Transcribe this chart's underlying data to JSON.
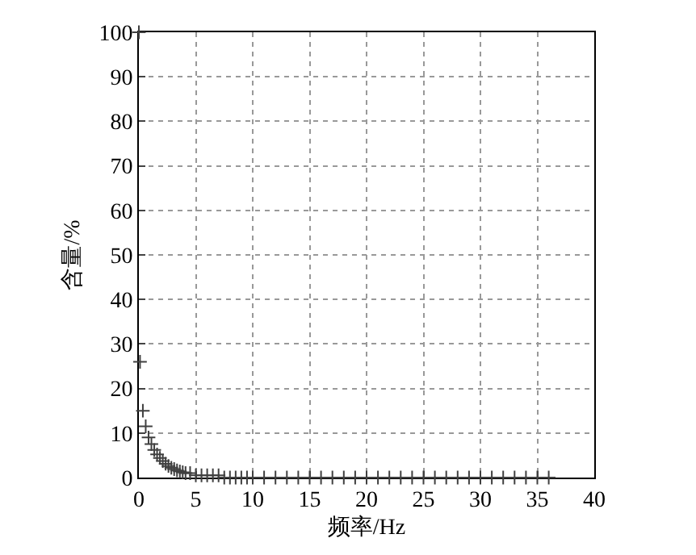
{
  "chart_data": {
    "type": "scatter",
    "xlabel": "频率/Hz",
    "ylabel": "含量/%",
    "marker": "cross",
    "grid": true,
    "xlim": [
      0,
      40
    ],
    "xticks": [
      0,
      5,
      10,
      15,
      20,
      25,
      30,
      35,
      40
    ],
    "ylim": [
      0,
      100
    ],
    "yticks": [
      0,
      10,
      20,
      30,
      40,
      50,
      60,
      70,
      80,
      90,
      100
    ],
    "series": [
      {
        "color": "#404040",
        "x": [
          0,
          0.1,
          0.35,
          0.6,
          0.85,
          1.1,
          1.35,
          1.6,
          1.85,
          2.1,
          2.35,
          2.6,
          2.85,
          3.1,
          3.35,
          3.6,
          3.85,
          4.1,
          4.5,
          5,
          5.5,
          6,
          6.5,
          7,
          7.5,
          8,
          8.5,
          9,
          9.5,
          10,
          11,
          12,
          13,
          14,
          15,
          16,
          17,
          18,
          19,
          20,
          21,
          22,
          23,
          24,
          25,
          26,
          27,
          28,
          29,
          30,
          31,
          32,
          33,
          34,
          35,
          36
        ],
        "values": [
          100,
          26,
          15,
          11.5,
          9,
          7.5,
          6.2,
          5.2,
          4.4,
          3.7,
          3.1,
          2.6,
          2.2,
          1.9,
          1.6,
          1.4,
          1.2,
          1,
          1,
          0.5,
          0.5,
          0.5,
          0.5,
          0.5,
          0,
          0,
          0,
          0,
          0,
          0,
          0,
          0,
          0,
          0,
          0,
          0,
          0,
          0,
          0,
          0,
          0,
          0,
          0,
          0,
          0,
          0,
          0,
          0,
          0,
          0,
          0,
          0,
          0,
          0,
          0,
          0
        ]
      }
    ]
  }
}
